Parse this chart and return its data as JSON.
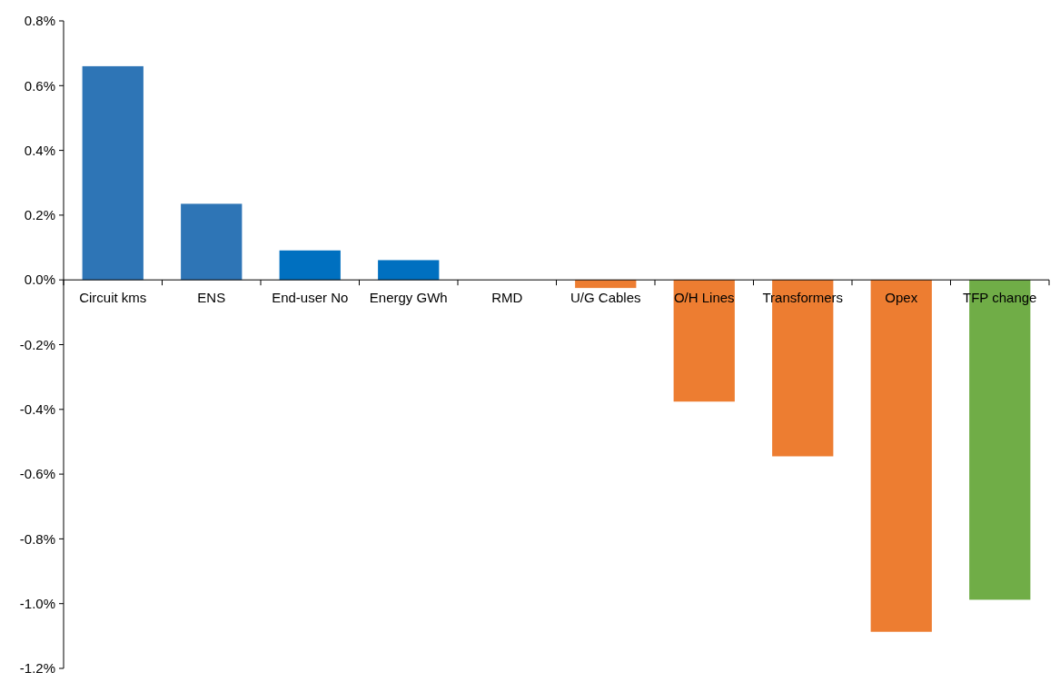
{
  "chart_data": {
    "type": "bar",
    "categories": [
      "Circuit kms",
      "ENS",
      "End-user No",
      "Energy GWh",
      "RMD",
      "U/G Cables",
      "O/H Lines",
      "Transformers",
      "Opex",
      "TFP change"
    ],
    "values": [
      0.66,
      0.235,
      0.091,
      0.061,
      0,
      -0.025,
      -0.376,
      -0.545,
      -1.087,
      -0.988
    ],
    "colors": [
      "#2e75b6",
      "#2e75b6",
      "#0070c0",
      "#0070c0",
      "#0070c0",
      "#ed7d31",
      "#ed7d31",
      "#ed7d31",
      "#ed7d31",
      "#70ad47"
    ],
    "ylim": [
      -1.2,
      0.8
    ],
    "yticks": [
      {
        "value": -1.2,
        "label": "-1.2%"
      },
      {
        "value": -1.0,
        "label": "-1.0%"
      },
      {
        "value": -0.8,
        "label": "-0.8%"
      },
      {
        "value": -0.6,
        "label": "-0.6%"
      },
      {
        "value": -0.4,
        "label": "-0.4%"
      },
      {
        "value": -0.2,
        "label": "-0.2%"
      },
      {
        "value": 0,
        "label": "0.0%"
      },
      {
        "value": 0.2,
        "label": "0.2%"
      },
      {
        "value": 0.4,
        "label": "0.4%"
      },
      {
        "value": 0.6,
        "label": "0.6%"
      },
      {
        "value": 0.8,
        "label": "0.8%"
      }
    ],
    "grid": false
  }
}
